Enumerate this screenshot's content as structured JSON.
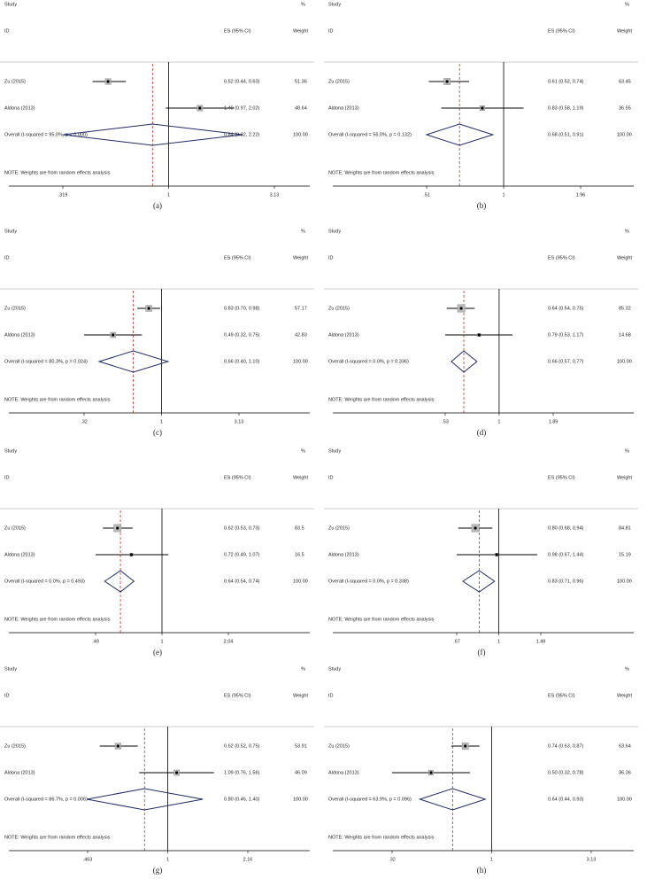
{
  "chart_data": [
    {
      "type": "forest",
      "caption": "(a)",
      "header": {
        "study": "Study",
        "pct": "%",
        "id": "ID",
        "es": "ES (95% CI)",
        "weight": "Weight"
      },
      "studies": [
        {
          "name": "Zu (2015)",
          "es": 0.52,
          "lo": 0.44,
          "hi": 0.63,
          "label": "0.52 (0.44, 0.63)",
          "weight": 51.36
        },
        {
          "name": "Aldona (2013)",
          "es": 1.4,
          "lo": 0.97,
          "hi": 2.02,
          "label": "1.40 (0.97, 2.02)",
          "weight": 48.64
        }
      ],
      "overall": {
        "name": "Overall  (I-squared = 95.0%, p = 0.000)",
        "es": 0.84,
        "lo": 0.32,
        "hi": 2.22,
        "label": "0.84 (0.32, 2.22)",
        "weight": 100,
        "weight_label": "100.00"
      },
      "note": "NOTE: Weights are from random effects analysis",
      "log_scale": true,
      "xlim": [
        0.319,
        3.13
      ],
      "xticks": [
        {
          "value": 0.319,
          "label": ".319"
        },
        1,
        3.13
      ]
    },
    {
      "type": "forest",
      "caption": "(b)",
      "header": {
        "study": "Study",
        "pct": "%",
        "id": "ID",
        "es": "ES (95% CI)",
        "weight": "Weight"
      },
      "studies": [
        {
          "name": "Zu (2015)",
          "es": 0.61,
          "lo": 0.52,
          "hi": 0.74,
          "label": "0.61 (0.52, 0.74)",
          "weight": 63.45
        },
        {
          "name": "Aldona (2013)",
          "es": 0.83,
          "lo": 0.58,
          "hi": 1.19,
          "label": "0.83 (0.58, 1.19)",
          "weight": 36.55
        }
      ],
      "overall": {
        "name": "Overall  (I-squared = 56.0%, p = 0.132)",
        "es": 0.68,
        "lo": 0.51,
        "hi": 0.91,
        "label": "0.68 (0.51, 0.91)",
        "weight": 100,
        "weight_label": "100.00"
      },
      "note": "NOTE: Weights are from random effects analysis",
      "log_scale": true,
      "xlim": [
        0.51,
        1.96
      ],
      "xticks": [
        {
          "value": 0.51,
          "label": ".51"
        },
        1,
        1.96
      ]
    },
    {
      "type": "forest",
      "caption": "(c)",
      "header": {
        "study": "Study",
        "pct": "%",
        "id": "ID",
        "es": "ES (95% CI)",
        "weight": "Weight"
      },
      "studies": [
        {
          "name": "Zu (2015)",
          "es": 0.83,
          "lo": 0.7,
          "hi": 0.98,
          "label": "0.83 (0.70, 0.98)",
          "weight": 57.17
        },
        {
          "name": "Aldona (2013)",
          "es": 0.49,
          "lo": 0.32,
          "hi": 0.75,
          "label": "0.49 (0.32, 0.75)",
          "weight": 42.83
        }
      ],
      "overall": {
        "name": "Overall  (I-squared = 80.3%, p = 0.024)",
        "es": 0.66,
        "lo": 0.4,
        "hi": 1.1,
        "label": "0.66 (0.40, 1.10)",
        "weight": 100,
        "weight_label": "100.00"
      },
      "note": "NOTE: Weights are from random effects analysis",
      "log_scale": true,
      "xlim": [
        0.32,
        3.13
      ],
      "xticks": [
        {
          "value": 0.32,
          "label": ".32"
        },
        1,
        3.13
      ]
    },
    {
      "type": "forest",
      "caption": "(d)",
      "header": {
        "study": "Study",
        "pct": "%",
        "id": "ID",
        "es": "ES (95% CI)",
        "weight": "Weight"
      },
      "studies": [
        {
          "name": "Zu (2015)",
          "es": 0.64,
          "lo": 0.54,
          "hi": 0.75,
          "label": "0.64 (0.54, 0.75)",
          "weight": 85.32
        },
        {
          "name": "Aldona (2013)",
          "es": 0.79,
          "lo": 0.53,
          "hi": 1.17,
          "label": "0.79 (0.53, 1.17)",
          "weight": 14.68
        }
      ],
      "overall": {
        "name": "Overall  (I-squared = 0.0%, p = 0.336)",
        "es": 0.66,
        "lo": 0.57,
        "hi": 0.77,
        "label": "0.66 (0.57, 0.77)",
        "weight": 100,
        "weight_label": "100.00"
      },
      "note": "NOTE: Weights are from random effects analysis",
      "log_scale": true,
      "xlim": [
        0.53,
        1.89
      ],
      "xticks": [
        {
          "value": 0.53,
          "label": ".53"
        },
        1,
        1.89
      ]
    },
    {
      "type": "forest",
      "caption": "(e)",
      "header": {
        "study": "Study",
        "pct": "%",
        "id": "ID",
        "es": "ES (95% CI)",
        "weight": "Weight"
      },
      "studies": [
        {
          "name": "Zu (2015)",
          "es": 0.62,
          "lo": 0.53,
          "hi": 0.73,
          "label": "0.62 (0.53, 0.73)",
          "weight": 83.5
        },
        {
          "name": "Aldona (2013)",
          "es": 0.72,
          "lo": 0.49,
          "hi": 1.07,
          "label": "0.72 (0.49, 1.07)",
          "weight": 16.5
        }
      ],
      "overall": {
        "name": "Overall  (I-squared = 0.0%, p = 0.493)",
        "es": 0.64,
        "lo": 0.54,
        "hi": 0.74,
        "label": "0.64 (0.54, 0.74)",
        "weight": 100,
        "weight_label": "100.00"
      },
      "note": "NOTE: Weights are from random effects analysis",
      "log_scale": true,
      "xlim": [
        0.49,
        2.04
      ],
      "xticks": [
        {
          "value": 0.49,
          "label": ".49"
        },
        1,
        2.04
      ]
    },
    {
      "type": "forest",
      "caption": "(f)",
      "header": {
        "study": "Study",
        "pct": "%",
        "id": "ID",
        "es": "ES (95% CI)",
        "weight": "Weight"
      },
      "studies": [
        {
          "name": "Zu (2015)",
          "es": 0.8,
          "lo": 0.68,
          "hi": 0.94,
          "label": "0.80 (0.68, 0.94)",
          "weight": 84.81
        },
        {
          "name": "Aldona (2013)",
          "es": 0.98,
          "lo": 0.67,
          "hi": 1.44,
          "label": "0.98 (0.67, 1.44)",
          "weight": 15.19
        }
      ],
      "overall": {
        "name": "Overall  (I-squared = 0.0%, p = 0.338)",
        "es": 0.83,
        "lo": 0.71,
        "hi": 0.96,
        "label": "0.83 (0.71, 0.96)",
        "weight": 100,
        "weight_label": "100.00"
      },
      "note": "NOTE: Weights are from random effects analysis",
      "log_scale": true,
      "xlim": [
        0.67,
        1.49
      ],
      "xticks": [
        {
          "value": 0.67,
          "label": ".67"
        },
        1,
        1.49
      ]
    },
    {
      "type": "forest",
      "caption": "(g)",
      "header": {
        "study": "Study",
        "pct": "%",
        "id": "ID",
        "es": "ES (95% CI)",
        "weight": "Weight"
      },
      "studies": [
        {
          "name": "Zu (2015)",
          "es": 0.62,
          "lo": 0.52,
          "hi": 0.75,
          "label": "0.62 (0.52, 0.75)",
          "weight": 53.91
        },
        {
          "name": "Aldona (2013)",
          "es": 1.09,
          "lo": 0.76,
          "hi": 1.56,
          "label": "1.09 (0.76, 1.56)",
          "weight": 46.09
        }
      ],
      "overall": {
        "name": "Overall  (I-squared = 86.7%, p = 0.006)",
        "es": 0.8,
        "lo": 0.46,
        "hi": 1.4,
        "label": "0.80 (0.46, 1.40)",
        "weight": 100,
        "weight_label": "100.00"
      },
      "note": "NOTE: Weights are from random effects analysis",
      "log_scale": true,
      "xlim": [
        0.463,
        2.16
      ],
      "xticks": [
        {
          "value": 0.463,
          "label": ".463"
        },
        1,
        2.16
      ]
    },
    {
      "type": "forest",
      "caption": "(h)",
      "header": {
        "study": "Study",
        "pct": "%",
        "id": "ID",
        "es": "ES (95% CI)",
        "weight": "Weight"
      },
      "studies": [
        {
          "name": "Zu (2015)",
          "es": 0.74,
          "lo": 0.63,
          "hi": 0.87,
          "label": "0.74 (0.63, 0.87)",
          "weight": 63.64
        },
        {
          "name": "Aldona (2013)",
          "es": 0.5,
          "lo": 0.32,
          "hi": 0.78,
          "label": "0.50 (0.32, 0.78)",
          "weight": 36.36
        }
      ],
      "overall": {
        "name": "Overall  (I-squared = 63.9%, p = 0.096)",
        "es": 0.64,
        "lo": 0.44,
        "hi": 0.93,
        "label": "0.64 (0.44, 0.93)",
        "weight": 100,
        "weight_label": "100.00"
      },
      "note": "NOTE: Weights are from random effects analysis",
      "log_scale": true,
      "xlim": [
        0.32,
        3.13
      ],
      "xticks": [
        {
          "value": 0.32,
          "label": ".32"
        },
        1,
        3.13
      ]
    }
  ]
}
